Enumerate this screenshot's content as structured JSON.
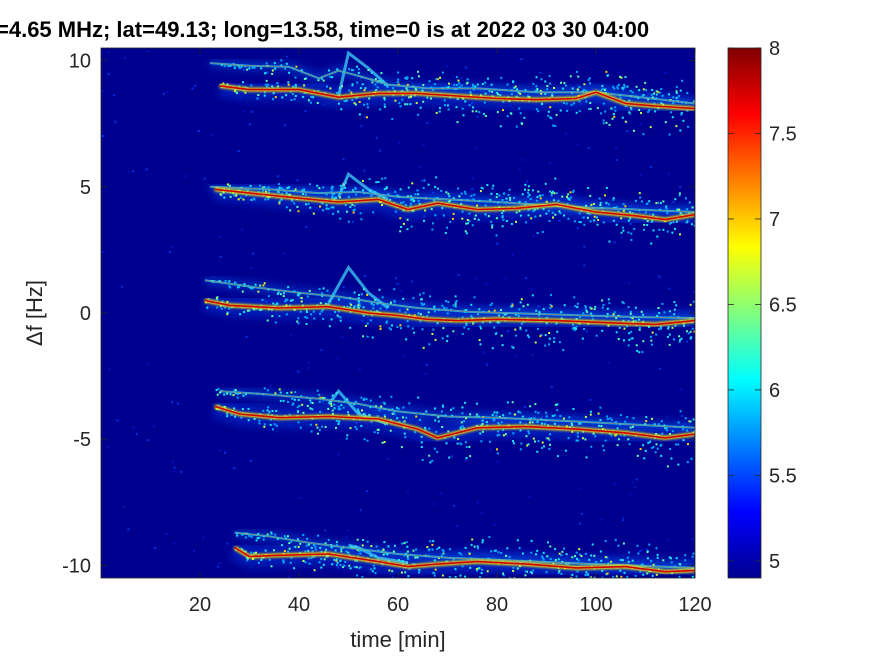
{
  "chart_data": {
    "type": "heatmap",
    "title": "=4.65 MHz;  lat=49.13; long=13.58, time=0 is at 2022 03 30 04:00",
    "xlabel": "time [min]",
    "ylabel": "Δf [Hz]",
    "xlim": [
      0,
      120
    ],
    "ylim": [
      -10.5,
      10.5
    ],
    "x_ticks": [
      20,
      40,
      60,
      80,
      100,
      120
    ],
    "y_ticks": [
      10,
      5,
      0,
      -5,
      -10
    ],
    "x_tick_labels": [
      "20",
      "40",
      "60",
      "80",
      "100",
      "120"
    ],
    "y_tick_labels": [
      "10",
      "5",
      "0",
      "-5",
      "-10"
    ],
    "colorbar": {
      "min": 4.9,
      "max": 8,
      "ticks": [
        8,
        7.5,
        7,
        6.5,
        6,
        5.5,
        5
      ],
      "tick_labels": [
        "8",
        "7.5",
        "7",
        "6.5",
        "6",
        "5.5",
        "5"
      ],
      "colormap": "jet"
    },
    "background_color": "#00008f",
    "grid": false,
    "series": [
      {
        "start_time": 24,
        "main_trace": [
          [
            24,
            9.0
          ],
          [
            30,
            8.85
          ],
          [
            40,
            8.85
          ],
          [
            48,
            8.55
          ],
          [
            56,
            8.7
          ],
          [
            64,
            8.7
          ],
          [
            72,
            8.6
          ],
          [
            80,
            8.5
          ],
          [
            88,
            8.45
          ],
          [
            96,
            8.5
          ],
          [
            100,
            8.75
          ],
          [
            106,
            8.3
          ],
          [
            112,
            8.2
          ],
          [
            120,
            8.1
          ]
        ],
        "upper_trace": [
          [
            22,
            9.9
          ],
          [
            30,
            9.8
          ],
          [
            38,
            9.75
          ],
          [
            44,
            9.3
          ],
          [
            48,
            9.6
          ],
          [
            52,
            9.4
          ],
          [
            58,
            9.05
          ],
          [
            66,
            8.9
          ],
          [
            76,
            8.9
          ],
          [
            88,
            8.75
          ],
          [
            100,
            8.75
          ],
          [
            120,
            8.3
          ]
        ],
        "spike": [
          [
            48,
            8.6
          ],
          [
            50,
            10.3
          ],
          [
            54,
            9.7
          ],
          [
            58,
            9.0
          ]
        ]
      },
      {
        "start_time": 23,
        "main_trace": [
          [
            23,
            4.9
          ],
          [
            30,
            4.75
          ],
          [
            40,
            4.55
          ],
          [
            48,
            4.4
          ],
          [
            56,
            4.5
          ],
          [
            62,
            4.1
          ],
          [
            68,
            4.35
          ],
          [
            76,
            4.1
          ],
          [
            84,
            4.15
          ],
          [
            92,
            4.3
          ],
          [
            100,
            4.0
          ],
          [
            108,
            3.85
          ],
          [
            114,
            3.7
          ],
          [
            120,
            3.9
          ]
        ],
        "upper_trace": [
          [
            22,
            5.0
          ],
          [
            34,
            4.9
          ],
          [
            44,
            4.75
          ],
          [
            52,
            4.8
          ],
          [
            60,
            4.6
          ],
          [
            70,
            4.5
          ],
          [
            80,
            4.4
          ],
          [
            96,
            4.2
          ],
          [
            120,
            4.0
          ]
        ],
        "spike": [
          [
            48,
            4.6
          ],
          [
            50,
            5.5
          ],
          [
            54,
            4.9
          ],
          [
            58,
            4.5
          ]
        ]
      },
      {
        "start_time": 21,
        "main_trace": [
          [
            21,
            0.5
          ],
          [
            26,
            0.3
          ],
          [
            36,
            0.2
          ],
          [
            46,
            0.25
          ],
          [
            54,
            0.0
          ],
          [
            60,
            -0.1
          ],
          [
            66,
            -0.25
          ],
          [
            72,
            -0.3
          ],
          [
            80,
            -0.25
          ],
          [
            92,
            -0.3
          ],
          [
            104,
            -0.4
          ],
          [
            112,
            -0.45
          ],
          [
            120,
            -0.3
          ]
        ],
        "upper_trace": [
          [
            21,
            1.3
          ],
          [
            30,
            1.05
          ],
          [
            40,
            0.8
          ],
          [
            48,
            0.65
          ],
          [
            56,
            0.4
          ],
          [
            64,
            0.2
          ],
          [
            74,
            0.05
          ],
          [
            90,
            -0.05
          ],
          [
            106,
            -0.15
          ],
          [
            120,
            -0.2
          ]
        ],
        "spike": [
          [
            46,
            0.4
          ],
          [
            50,
            1.8
          ],
          [
            54,
            0.8
          ],
          [
            58,
            0.2
          ]
        ]
      },
      {
        "start_time": 23,
        "main_trace": [
          [
            23,
            -3.7
          ],
          [
            28,
            -4.0
          ],
          [
            36,
            -4.15
          ],
          [
            46,
            -4.1
          ],
          [
            56,
            -4.2
          ],
          [
            64,
            -4.6
          ],
          [
            68,
            -4.95
          ],
          [
            76,
            -4.55
          ],
          [
            86,
            -4.5
          ],
          [
            96,
            -4.6
          ],
          [
            106,
            -4.75
          ],
          [
            114,
            -4.95
          ],
          [
            120,
            -4.8
          ]
        ],
        "upper_trace": [
          [
            24,
            -3.1
          ],
          [
            32,
            -3.2
          ],
          [
            44,
            -3.4
          ],
          [
            52,
            -3.6
          ],
          [
            60,
            -3.9
          ],
          [
            70,
            -4.1
          ],
          [
            80,
            -4.15
          ],
          [
            96,
            -4.3
          ],
          [
            120,
            -4.55
          ]
        ],
        "spike": [
          [
            46,
            -3.6
          ],
          [
            48,
            -3.1
          ],
          [
            52,
            -4.0
          ],
          [
            58,
            -4.4
          ]
        ]
      },
      {
        "start_time": 27,
        "main_trace": [
          [
            27,
            -9.3
          ],
          [
            30,
            -9.65
          ],
          [
            36,
            -9.6
          ],
          [
            46,
            -9.55
          ],
          [
            56,
            -9.85
          ],
          [
            62,
            -10.05
          ],
          [
            68,
            -9.95
          ],
          [
            76,
            -9.85
          ],
          [
            86,
            -9.95
          ],
          [
            96,
            -10.1
          ],
          [
            106,
            -10.05
          ],
          [
            114,
            -10.25
          ],
          [
            120,
            -10.2
          ]
        ],
        "upper_trace": [
          [
            27,
            -8.7
          ],
          [
            34,
            -8.85
          ],
          [
            42,
            -9.1
          ],
          [
            52,
            -9.35
          ],
          [
            60,
            -9.55
          ],
          [
            70,
            -9.7
          ],
          [
            82,
            -9.8
          ],
          [
            100,
            -9.95
          ],
          [
            120,
            -10.1
          ]
        ],
        "spike": [
          [
            50,
            -9.2
          ],
          [
            52,
            -9.3
          ],
          [
            56,
            -9.7
          ],
          [
            62,
            -9.9
          ]
        ]
      }
    ]
  }
}
